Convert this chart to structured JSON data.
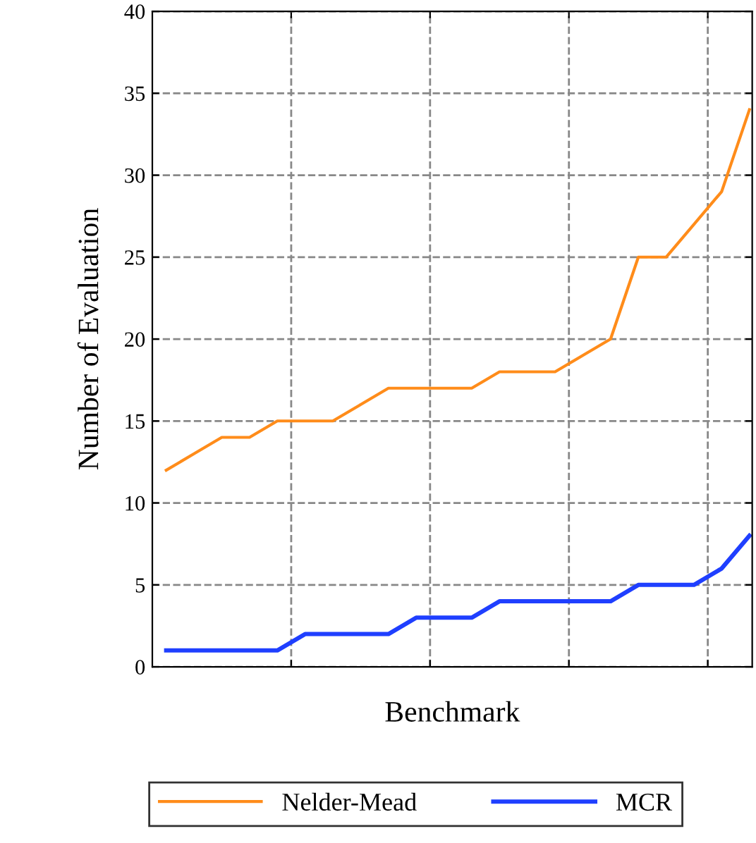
{
  "chart_data": {
    "type": "line",
    "xlabel": "Benchmark",
    "ylabel": "Number of Evaluation",
    "categories": [
      null,
      null,
      null,
      null,
      null,
      null,
      null,
      null,
      null,
      null,
      null,
      null,
      null,
      null,
      null,
      null,
      null,
      null,
      null,
      null,
      null,
      null
    ],
    "series": [
      {
        "name": "Nelder-Mead",
        "color": "#ff8c1a",
        "values": [
          12,
          13,
          14,
          14,
          15,
          15,
          15,
          16,
          17,
          17,
          17,
          17,
          18,
          18,
          18,
          19,
          20,
          25,
          25,
          27,
          29,
          34
        ]
      },
      {
        "name": "MCR",
        "color": "#1f3fff",
        "values": [
          1,
          1,
          1,
          1,
          1,
          2,
          2,
          2,
          2,
          3,
          3,
          3,
          4,
          4,
          4,
          4,
          4,
          5,
          5,
          5,
          6,
          8
        ]
      }
    ],
    "ylim": [
      0,
      40
    ],
    "yticks": [
      0,
      5,
      10,
      15,
      20,
      25,
      30,
      35,
      40
    ],
    "grid": true,
    "legend": "bottom",
    "marker": "none",
    "line_style": "solid"
  }
}
